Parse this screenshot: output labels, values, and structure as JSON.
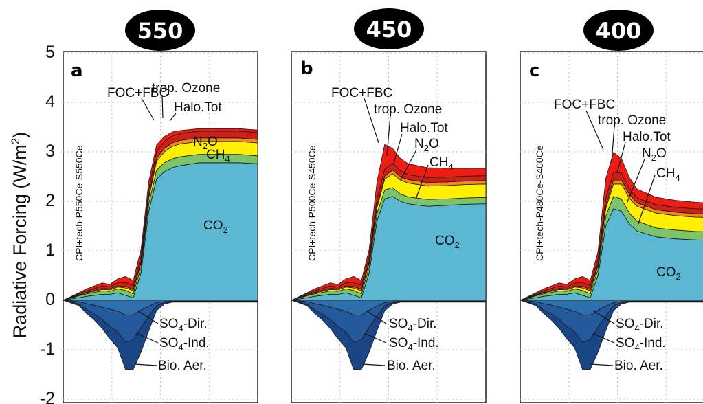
{
  "figure": {
    "ylabel": "Radiative Forcing (W/m",
    "ylabel_sup": "2",
    "ylabel_end": ")",
    "yticks": [
      "5",
      "4",
      "3",
      "2",
      "1",
      "0",
      "-1",
      "-2"
    ]
  },
  "colors": {
    "co2": "#5cb8d2",
    "ch4": "#7cc36a",
    "n2o": "#ffef00",
    "halo": "#f08a1c",
    "ozone": "#cc2118",
    "focfbc": "#ee1c12",
    "so4dir": "#2e6fae",
    "so4ind": "#24599b",
    "bioaer": "#1a4686",
    "pill": "#000000",
    "grid": "#bdbdbd"
  },
  "chart_data": [
    {
      "type": "area",
      "badge": "550",
      "panel_letter": "a",
      "scenario": "CPI+tech-P550Ce-S550Ce",
      "ylim": [
        -2,
        5
      ],
      "grid": true,
      "x": [
        0,
        0.08,
        0.12,
        0.16,
        0.2,
        0.24,
        0.28,
        0.32,
        0.36,
        0.4,
        0.44,
        0.48,
        0.52,
        0.56,
        0.6,
        0.7,
        0.8,
        0.9,
        1.0
      ],
      "series": [
        {
          "label": "CO2",
          "sign": "pos",
          "values": [
            0,
            0.05,
            0.08,
            0.1,
            0.12,
            0.12,
            0.15,
            0.1,
            0.05,
            0.55,
            1.8,
            2.45,
            2.6,
            2.68,
            2.72,
            2.78,
            2.78,
            2.78,
            2.76
          ]
        },
        {
          "label": "CH4",
          "sign": "pos",
          "values": [
            0,
            0.04,
            0.05,
            0.06,
            0.07,
            0.06,
            0.08,
            0.1,
            0.08,
            0.12,
            0.15,
            0.18,
            0.18,
            0.18,
            0.18,
            0.17,
            0.17,
            0.17,
            0.16
          ]
        },
        {
          "label": "N2O",
          "sign": "pos",
          "values": [
            0,
            0.01,
            0.02,
            0.02,
            0.03,
            0.03,
            0.04,
            0.05,
            0.06,
            0.08,
            0.12,
            0.18,
            0.22,
            0.25,
            0.26,
            0.26,
            0.26,
            0.26,
            0.26
          ]
        },
        {
          "label": "Halo.Tot",
          "sign": "pos",
          "values": [
            0,
            0.01,
            0.01,
            0.02,
            0.02,
            0.02,
            0.02,
            0.03,
            0.03,
            0.04,
            0.05,
            0.06,
            0.07,
            0.07,
            0.07,
            0.07,
            0.07,
            0.07,
            0.07
          ]
        },
        {
          "label": "trop. Ozone",
          "sign": "pos",
          "values": [
            0,
            0.02,
            0.03,
            0.04,
            0.05,
            0.04,
            0.06,
            0.08,
            0.08,
            0.1,
            0.12,
            0.14,
            0.14,
            0.14,
            0.14,
            0.14,
            0.14,
            0.14,
            0.14
          ]
        },
        {
          "label": "FOC+FBC",
          "sign": "pos",
          "values": [
            0,
            0.02,
            0.04,
            0.05,
            0.06,
            0.05,
            0.08,
            0.12,
            0.1,
            0.14,
            0.16,
            0.13,
            0.1,
            0.08,
            0.06,
            0.05,
            0.05,
            0.05,
            0.05
          ]
        },
        {
          "label": "SO4-Dir.",
          "sign": "neg",
          "values": [
            0,
            0.03,
            0.07,
            0.1,
            0.14,
            0.18,
            0.22,
            0.3,
            0.3,
            0.2,
            0.12,
            0.05,
            0.03,
            0.02,
            0.02,
            0.02,
            0.02,
            0.02,
            0.02
          ]
        },
        {
          "label": "SO4-Ind.",
          "sign": "neg",
          "values": [
            0,
            0.05,
            0.12,
            0.18,
            0.25,
            0.35,
            0.42,
            0.55,
            0.5,
            0.35,
            0.2,
            0.06,
            0.02,
            0.01,
            0.01,
            0.01,
            0.01,
            0.01,
            0.01
          ]
        },
        {
          "label": "Bio. Aer.",
          "sign": "neg",
          "values": [
            0,
            0.03,
            0.08,
            0.12,
            0.18,
            0.25,
            0.32,
            0.55,
            0.6,
            0.5,
            0.3,
            0.1,
            0.03,
            0.01,
            0.01,
            0.01,
            0.01,
            0.01,
            0.01
          ]
        }
      ],
      "labels": {
        "focfbc": "FOC+FBC",
        "ozone": "trop. Ozone",
        "halo": "Halo.Tot",
        "n2o_main": "N",
        "n2o_sub": "2",
        "n2o_end": "O",
        "ch4_main": "CH",
        "ch4_sub": "4",
        "co2_main": "CO",
        "co2_sub": "2",
        "so4dir_main": "SO",
        "so4dir_sub": "4",
        "so4dir_end": "-Dir.",
        "so4ind_main": "SO",
        "so4ind_sub": "4",
        "so4ind_end": "-Ind.",
        "bioaer": "Bio. Aer."
      }
    },
    {
      "type": "area",
      "badge": "450",
      "panel_letter": "b",
      "scenario": "CPI+tech-P500Ce-S450Ce",
      "ylim": [
        -2,
        5
      ],
      "grid": true,
      "x": [
        0,
        0.08,
        0.12,
        0.16,
        0.2,
        0.24,
        0.28,
        0.32,
        0.36,
        0.4,
        0.44,
        0.48,
        0.52,
        0.56,
        0.6,
        0.7,
        0.8,
        0.9,
        1.0
      ],
      "series": [
        {
          "label": "CO2",
          "sign": "pos",
          "values": [
            0,
            0.05,
            0.08,
            0.1,
            0.12,
            0.12,
            0.15,
            0.1,
            0.05,
            0.55,
            1.6,
            2.05,
            2.1,
            2.0,
            1.95,
            1.9,
            1.92,
            1.94,
            1.95
          ]
        },
        {
          "label": "CH4",
          "sign": "pos",
          "values": [
            0,
            0.04,
            0.05,
            0.06,
            0.07,
            0.06,
            0.08,
            0.1,
            0.08,
            0.12,
            0.15,
            0.18,
            0.18,
            0.15,
            0.14,
            0.14,
            0.13,
            0.13,
            0.13
          ]
        },
        {
          "label": "N2O",
          "sign": "pos",
          "values": [
            0,
            0.01,
            0.02,
            0.02,
            0.03,
            0.03,
            0.04,
            0.05,
            0.06,
            0.08,
            0.12,
            0.22,
            0.28,
            0.28,
            0.28,
            0.27,
            0.27,
            0.27,
            0.27
          ]
        },
        {
          "label": "Halo.Tot",
          "sign": "pos",
          "values": [
            0,
            0.01,
            0.01,
            0.02,
            0.02,
            0.02,
            0.02,
            0.03,
            0.03,
            0.04,
            0.05,
            0.06,
            0.07,
            0.07,
            0.07,
            0.07,
            0.07,
            0.07,
            0.07
          ]
        },
        {
          "label": "trop. Ozone",
          "sign": "pos",
          "values": [
            0,
            0.02,
            0.03,
            0.04,
            0.05,
            0.04,
            0.06,
            0.08,
            0.08,
            0.1,
            0.12,
            0.14,
            0.14,
            0.12,
            0.1,
            0.1,
            0.1,
            0.1,
            0.1
          ]
        },
        {
          "label": "FOC+FBC",
          "sign": "pos",
          "values": [
            0,
            0.02,
            0.04,
            0.05,
            0.06,
            0.05,
            0.08,
            0.12,
            0.1,
            0.14,
            0.35,
            0.5,
            0.3,
            0.25,
            0.22,
            0.2,
            0.18,
            0.16,
            0.15
          ]
        },
        {
          "label": "SO4-Dir.",
          "sign": "neg",
          "values": [
            0,
            0.03,
            0.07,
            0.1,
            0.14,
            0.18,
            0.22,
            0.3,
            0.3,
            0.2,
            0.12,
            0.05,
            0.03,
            0.02,
            0.02,
            0.02,
            0.02,
            0.02,
            0.02
          ]
        },
        {
          "label": "SO4-Ind.",
          "sign": "neg",
          "values": [
            0,
            0.05,
            0.12,
            0.18,
            0.25,
            0.35,
            0.42,
            0.55,
            0.5,
            0.35,
            0.2,
            0.06,
            0.02,
            0.01,
            0.01,
            0.01,
            0.01,
            0.01,
            0.01
          ]
        },
        {
          "label": "Bio. Aer.",
          "sign": "neg",
          "values": [
            0,
            0.03,
            0.08,
            0.12,
            0.18,
            0.25,
            0.32,
            0.55,
            0.6,
            0.5,
            0.3,
            0.1,
            0.03,
            0.01,
            0.01,
            0.01,
            0.01,
            0.01,
            0.01
          ]
        }
      ],
      "labels": {
        "focfbc": "FOC+FBC",
        "ozone": "trop. Ozone",
        "halo": "Halo.Tot",
        "n2o_main": "N",
        "n2o_sub": "2",
        "n2o_end": "O",
        "ch4_main": "CH",
        "ch4_sub": "4",
        "co2_main": "CO",
        "co2_sub": "2",
        "so4dir_main": "SO",
        "so4dir_sub": "4",
        "so4dir_end": "-Dir.",
        "so4ind_main": "SO",
        "so4ind_sub": "4",
        "so4ind_end": "-Ind.",
        "bioaer": "Bio. Aer."
      }
    },
    {
      "type": "area",
      "badge": "400",
      "panel_letter": "c",
      "scenario": "CPI+tech-P480Ce-S400Ce",
      "ylim": [
        -2,
        5
      ],
      "grid": true,
      "x": [
        0,
        0.08,
        0.12,
        0.16,
        0.2,
        0.24,
        0.28,
        0.32,
        0.36,
        0.4,
        0.44,
        0.48,
        0.52,
        0.56,
        0.6,
        0.7,
        0.8,
        0.9,
        1.0
      ],
      "series": [
        {
          "label": "CO2",
          "sign": "pos",
          "values": [
            0,
            0.05,
            0.08,
            0.1,
            0.12,
            0.12,
            0.15,
            0.1,
            0.05,
            0.5,
            1.5,
            1.85,
            1.8,
            1.55,
            1.4,
            1.28,
            1.24,
            1.22,
            1.21
          ]
        },
        {
          "label": "CH4",
          "sign": "pos",
          "values": [
            0,
            0.04,
            0.05,
            0.06,
            0.07,
            0.06,
            0.08,
            0.1,
            0.08,
            0.12,
            0.2,
            0.25,
            0.25,
            0.22,
            0.2,
            0.18,
            0.18,
            0.17,
            0.17
          ]
        },
        {
          "label": "N2O",
          "sign": "pos",
          "values": [
            0,
            0.01,
            0.02,
            0.02,
            0.03,
            0.03,
            0.04,
            0.05,
            0.06,
            0.08,
            0.15,
            0.25,
            0.3,
            0.3,
            0.3,
            0.3,
            0.29,
            0.29,
            0.29
          ]
        },
        {
          "label": "Halo.Tot",
          "sign": "pos",
          "values": [
            0,
            0.01,
            0.01,
            0.02,
            0.02,
            0.02,
            0.02,
            0.03,
            0.03,
            0.04,
            0.06,
            0.08,
            0.08,
            0.08,
            0.07,
            0.07,
            0.07,
            0.07,
            0.07
          ]
        },
        {
          "label": "trop. Ozone",
          "sign": "pos",
          "values": [
            0,
            0.02,
            0.03,
            0.04,
            0.05,
            0.04,
            0.06,
            0.08,
            0.08,
            0.1,
            0.15,
            0.16,
            0.14,
            0.12,
            0.1,
            0.1,
            0.1,
            0.1,
            0.1
          ]
        },
        {
          "label": "FOC+FBC",
          "sign": "pos",
          "values": [
            0,
            0.02,
            0.04,
            0.05,
            0.06,
            0.05,
            0.08,
            0.12,
            0.1,
            0.14,
            0.4,
            0.4,
            0.3,
            0.22,
            0.18,
            0.15,
            0.14,
            0.13,
            0.12
          ]
        },
        {
          "label": "SO4-Dir.",
          "sign": "neg",
          "values": [
            0,
            0.03,
            0.07,
            0.1,
            0.14,
            0.18,
            0.22,
            0.3,
            0.3,
            0.2,
            0.12,
            0.05,
            0.03,
            0.02,
            0.02,
            0.02,
            0.02,
            0.02,
            0.02
          ]
        },
        {
          "label": "SO4-Ind.",
          "sign": "neg",
          "values": [
            0,
            0.05,
            0.12,
            0.18,
            0.25,
            0.35,
            0.42,
            0.55,
            0.5,
            0.35,
            0.2,
            0.06,
            0.02,
            0.01,
            0.01,
            0.01,
            0.01,
            0.01,
            0.01
          ]
        },
        {
          "label": "Bio. Aer.",
          "sign": "neg",
          "values": [
            0,
            0.03,
            0.08,
            0.12,
            0.18,
            0.25,
            0.32,
            0.55,
            0.6,
            0.5,
            0.3,
            0.1,
            0.03,
            0.01,
            0.01,
            0.01,
            0.01,
            0.01,
            0.01
          ]
        }
      ],
      "labels": {
        "focfbc": "FOC+FBC",
        "ozone": "trop. Ozone",
        "halo": "Halo.Tot",
        "n2o_main": "N",
        "n2o_sub": "2",
        "n2o_end": "O",
        "ch4_main": "CH",
        "ch4_sub": "4",
        "co2_main": "CO",
        "co2_sub": "2",
        "so4dir_main": "SO",
        "so4dir_sub": "4",
        "so4dir_end": "-Dir.",
        "so4ind_main": "SO",
        "so4ind_sub": "4",
        "so4ind_end": "-Ind.",
        "bioaer": "Bio. Aer."
      }
    }
  ]
}
